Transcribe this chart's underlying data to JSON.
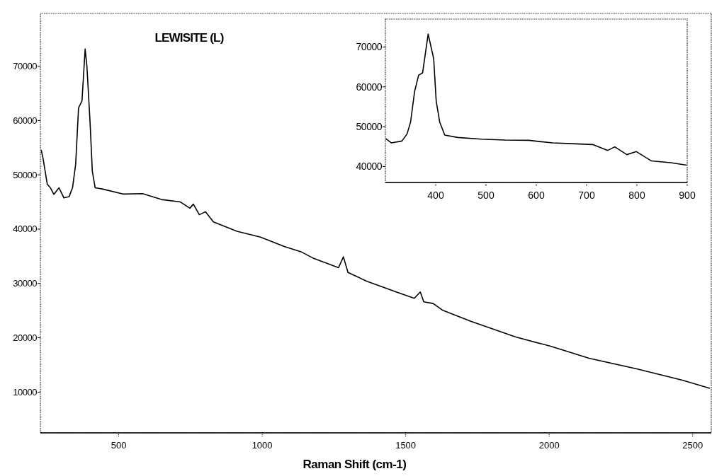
{
  "chart_data": [
    {
      "type": "line",
      "title": "LEWISITE (L)",
      "xlabel": "Raman Shift (cm-1)",
      "xlim": [
        227,
        2565
      ],
      "ylim": [
        2500,
        79700
      ],
      "xticks": [
        500,
        1000,
        1500,
        2000,
        2500
      ],
      "yticks": [
        10000,
        20000,
        30000,
        40000,
        50000,
        60000,
        70000
      ],
      "series": [
        {
          "color": "#000000",
          "x": [
            230,
            237,
            251,
            262,
            274,
            292,
            309,
            327,
            339,
            350,
            360,
            372,
            383,
            389,
            400,
            408,
            418,
            442,
            517,
            583,
            649,
            715,
            748,
            760,
            781,
            802,
            830,
            912,
            994,
            1077,
            1135,
            1176,
            1266,
            1283,
            1299,
            1365,
            1472,
            1530,
            1551,
            1563,
            1596,
            1628,
            1727,
            1884,
            2005,
            2139,
            2305,
            2464,
            2560
          ],
          "values": [
            54600,
            52800,
            48260,
            47600,
            46400,
            47600,
            45750,
            45970,
            47600,
            51950,
            62300,
            63600,
            73150,
            70100,
            59800,
            50650,
            47600,
            47400,
            46450,
            46530,
            45450,
            45000,
            43850,
            44600,
            42650,
            43200,
            41340,
            39600,
            38520,
            36800,
            35840,
            34700,
            32900,
            34900,
            32030,
            30400,
            28350,
            27270,
            28440,
            26620,
            26310,
            25100,
            23030,
            20130,
            18440,
            16230,
            14290,
            12200,
            10700
          ]
        }
      ]
    },
    {
      "type": "line",
      "xlim": [
        300,
        900
      ],
      "ylim": [
        36000,
        77000
      ],
      "xticks": [
        400,
        500,
        600,
        700,
        800,
        900
      ],
      "yticks": [
        40000,
        50000,
        60000,
        70000
      ],
      "series": [
        {
          "color": "#000000",
          "x": [
            301,
            312,
            333,
            343,
            350,
            358,
            366,
            374,
            385,
            396,
            401,
            408,
            418,
            444,
            491,
            538,
            585,
            632,
            679,
            712,
            742,
            756,
            780,
            799,
            829,
            867,
            899
          ],
          "values": [
            46990,
            45930,
            46400,
            48180,
            51130,
            58800,
            62920,
            63520,
            73250,
            67060,
            56440,
            51130,
            47880,
            47290,
            46880,
            46640,
            46580,
            45930,
            45700,
            45520,
            44050,
            44940,
            42990,
            43750,
            41400,
            40980,
            40340
          ]
        }
      ]
    }
  ]
}
